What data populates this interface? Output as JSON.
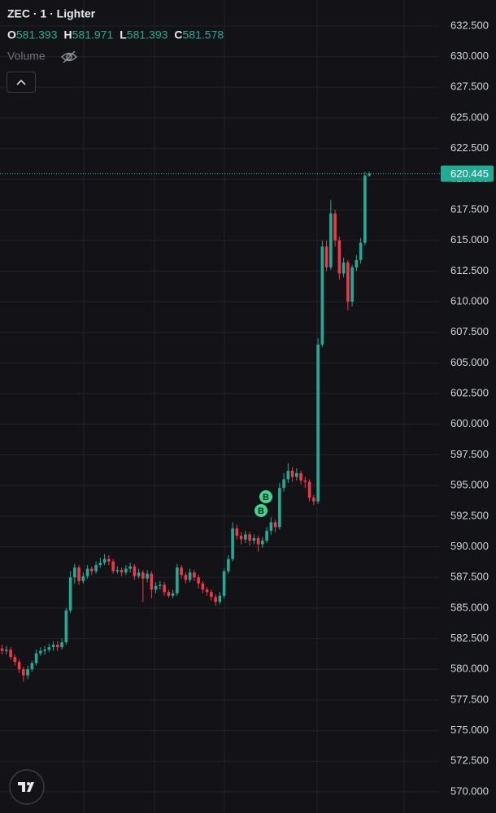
{
  "chart_data": {
    "type": "candlestick",
    "title": "ZEC · 1 · Lighter",
    "ohlc": [
      {
        "label": "O",
        "value": 581.393
      },
      {
        "label": "H",
        "value": 581.971
      },
      {
        "label": "L",
        "value": 581.393
      },
      {
        "label": "C",
        "value": 581.578
      }
    ],
    "volume_label": "Volume",
    "trade_markers": [
      "B",
      "B"
    ],
    "last_price": 620.445,
    "up_color": "#22ab94",
    "down_color": "#f23645",
    "grid": true,
    "ylim": [
      568.27,
      634.62
    ],
    "yticks": [
      {
        "value": 632.5,
        "label": "632.500"
      },
      {
        "value": 630,
        "label": "630.000"
      },
      {
        "value": 627.5,
        "label": "627.500"
      },
      {
        "value": 625,
        "label": "625.000"
      },
      {
        "value": 622.5,
        "label": "622.500"
      },
      {
        "value": 620,
        "label": "620.000"
      },
      {
        "value": 617.5,
        "label": "617.500"
      },
      {
        "value": 615,
        "label": "615.000"
      },
      {
        "value": 612.5,
        "label": "612.500"
      },
      {
        "value": 610,
        "label": "610.000"
      },
      {
        "value": 607.5,
        "label": "607.500"
      },
      {
        "value": 605,
        "label": "605.000"
      },
      {
        "value": 602.5,
        "label": "602.500"
      },
      {
        "value": 600,
        "label": "600.000"
      },
      {
        "value": 597.5,
        "label": "597.500"
      },
      {
        "value": 595,
        "label": "595.000"
      },
      {
        "value": 592.5,
        "label": "592.500"
      },
      {
        "value": 590,
        "label": "590.000"
      },
      {
        "value": 587.5,
        "label": "587.500"
      },
      {
        "value": 585,
        "label": "585.000"
      },
      {
        "value": 582.5,
        "label": "582.500"
      },
      {
        "value": 580,
        "label": "580.000"
      },
      {
        "value": 577.5,
        "label": "577.500"
      },
      {
        "value": 575,
        "label": "575.000"
      },
      {
        "value": 572.5,
        "label": "572.500"
      },
      {
        "value": 570,
        "label": "570.000"
      }
    ],
    "open": [
      581.7,
      581.5,
      581.6,
      581.0,
      580.6,
      580.0,
      579.5,
      580.0,
      580.5,
      581.3,
      581.5,
      581.6,
      581.8,
      582.0,
      581.8,
      582.2,
      584.8,
      587.5,
      588.3,
      587.2,
      587.6,
      588.2,
      588.0,
      588.5,
      588.7,
      589.0,
      588.8,
      588.0,
      588.1,
      587.9,
      588.2,
      588.4,
      587.6,
      587.9,
      587.4,
      587.8,
      586.5,
      586.8,
      586.9,
      586.3,
      586.0,
      586.2,
      588.3,
      587.7,
      587.3,
      587.9,
      587.5,
      587.0,
      586.5,
      586.3,
      585.9,
      585.5,
      586.0,
      588.0,
      589.0,
      591.5,
      590.9,
      590.6,
      591.0,
      590.5,
      590.7,
      590.2,
      590.5,
      591.3,
      592.0,
      591.6,
      594.8,
      595.5,
      596.2,
      595.7,
      596.0,
      595.4,
      595.3,
      594.0,
      593.7,
      606.5,
      614.5,
      612.8,
      617.2,
      615.0,
      612.3,
      613.2,
      610.0,
      612.8,
      613.4,
      614.8,
      620.3
    ],
    "high": [
      582.0,
      581.9,
      581.8,
      581.2,
      580.8,
      580.2,
      580.3,
      580.7,
      581.6,
      581.8,
      581.9,
      582.1,
      582.3,
      582.3,
      582.5,
      585.0,
      588.0,
      588.6,
      588.5,
      587.9,
      588.5,
      588.4,
      588.8,
      589.1,
      589.4,
      589.3,
      589.0,
      588.4,
      588.3,
      588.5,
      588.7,
      588.6,
      588.2,
      588.1,
      588.1,
      588.0,
      587.1,
      587.2,
      587.1,
      586.5,
      586.5,
      588.6,
      588.5,
      587.9,
      588.2,
      588.1,
      587.7,
      587.2,
      586.7,
      586.5,
      586.1,
      586.3,
      588.2,
      589.3,
      592.0,
      591.8,
      591.2,
      591.3,
      591.2,
      591.0,
      590.9,
      590.8,
      591.6,
      592.4,
      592.2,
      595.2,
      596.0,
      596.8,
      596.5,
      596.4,
      596.2,
      595.7,
      595.5,
      594.2,
      607.0,
      615.0,
      615.0,
      618.3,
      617.5,
      615.3,
      613.6,
      613.4,
      613.0,
      613.8,
      615.2,
      620.6,
      620.6
    ],
    "low": [
      581.2,
      581.2,
      580.8,
      580.3,
      579.7,
      579.0,
      579.2,
      579.8,
      580.3,
      581.1,
      581.2,
      581.4,
      581.5,
      581.5,
      581.6,
      582.0,
      584.6,
      587.0,
      586.9,
      587.0,
      587.4,
      587.7,
      587.8,
      588.3,
      588.5,
      588.5,
      587.8,
      587.8,
      587.6,
      587.7,
      587.9,
      587.3,
      587.4,
      585.5,
      587.1,
      585.8,
      586.2,
      586.5,
      586.0,
      585.8,
      585.8,
      586.0,
      587.4,
      587.0,
      587.1,
      587.2,
      586.6,
      586.2,
      586.0,
      585.6,
      585.2,
      585.3,
      585.8,
      587.8,
      588.8,
      590.6,
      590.2,
      590.3,
      590.1,
      590.2,
      589.6,
      589.9,
      590.3,
      591.0,
      591.2,
      591.4,
      594.5,
      595.2,
      595.3,
      595.4,
      595.1,
      594.8,
      593.7,
      593.4,
      593.5,
      606.3,
      612.5,
      612.6,
      614.5,
      611.8,
      612.0,
      609.3,
      609.6,
      612.5,
      613.1,
      614.6,
      620.2
    ],
    "close": [
      581.5,
      581.6,
      581.0,
      580.6,
      580.0,
      579.5,
      580.0,
      580.5,
      581.3,
      581.5,
      581.6,
      581.8,
      582.0,
      581.8,
      582.2,
      584.8,
      587.5,
      588.3,
      587.2,
      587.6,
      588.2,
      588.0,
      588.5,
      588.7,
      589.0,
      588.8,
      588.0,
      588.1,
      587.9,
      588.2,
      588.4,
      587.6,
      587.9,
      587.4,
      587.8,
      586.5,
      586.8,
      586.9,
      586.3,
      586.0,
      586.2,
      588.3,
      587.7,
      587.3,
      587.9,
      587.5,
      587.0,
      586.5,
      586.3,
      585.9,
      585.5,
      586.0,
      588.0,
      589.0,
      591.5,
      590.9,
      590.6,
      591.0,
      590.5,
      590.7,
      590.2,
      590.5,
      591.3,
      592.0,
      591.6,
      594.8,
      595.5,
      596.2,
      595.7,
      596.0,
      595.4,
      595.3,
      594.0,
      593.7,
      606.5,
      614.5,
      612.8,
      617.2,
      615.0,
      612.3,
      613.2,
      610.0,
      612.8,
      613.4,
      614.8,
      620.3,
      620.445
    ]
  }
}
